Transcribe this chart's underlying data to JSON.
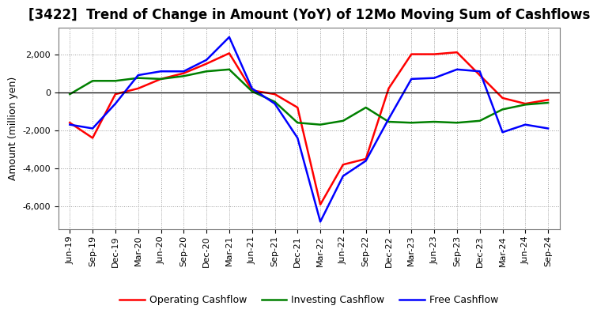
{
  "title": "[3422]  Trend of Change in Amount (YoY) of 12Mo Moving Sum of Cashflows",
  "ylabel": "Amount (million yen)",
  "x_labels": [
    "Jun-19",
    "Sep-19",
    "Dec-19",
    "Mar-20",
    "Jun-20",
    "Sep-20",
    "Dec-20",
    "Mar-21",
    "Jun-21",
    "Sep-21",
    "Dec-21",
    "Mar-22",
    "Jun-22",
    "Sep-22",
    "Dec-22",
    "Mar-23",
    "Jun-23",
    "Sep-23",
    "Dec-23",
    "Mar-24",
    "Jun-24",
    "Sep-24"
  ],
  "operating": [
    -1600,
    -2400,
    -100,
    200,
    700,
    1000,
    1500,
    2050,
    100,
    -100,
    -800,
    -5900,
    -3800,
    -3500,
    200,
    2000,
    2000,
    2100,
    900,
    -300,
    -600,
    -400
  ],
  "investing": [
    -100,
    600,
    600,
    750,
    700,
    850,
    1100,
    1200,
    50,
    -500,
    -1600,
    -1700,
    -1500,
    -800,
    -1550,
    -1600,
    -1550,
    -1600,
    -1500,
    -900,
    -650,
    -550
  ],
  "free": [
    -1700,
    -1900,
    -600,
    900,
    1100,
    1100,
    1700,
    2900,
    200,
    -600,
    -2400,
    -6800,
    -4400,
    -3600,
    -1400,
    700,
    750,
    1200,
    1100,
    -2100,
    -1700,
    -1900
  ],
  "operating_color": "#FF0000",
  "investing_color": "#008000",
  "free_color": "#0000FF",
  "ylim_min": -7200,
  "ylim_max": 3400,
  "yticks": [
    -6000,
    -4000,
    -2000,
    0,
    2000
  ],
  "background_color": "#FFFFFF",
  "plot_bg_color": "#FFFFFF",
  "grid_color": "#AAAAAA",
  "title_fontsize": 12,
  "label_fontsize": 9,
  "tick_fontsize": 8,
  "legend_fontsize": 9,
  "linewidth": 1.8
}
